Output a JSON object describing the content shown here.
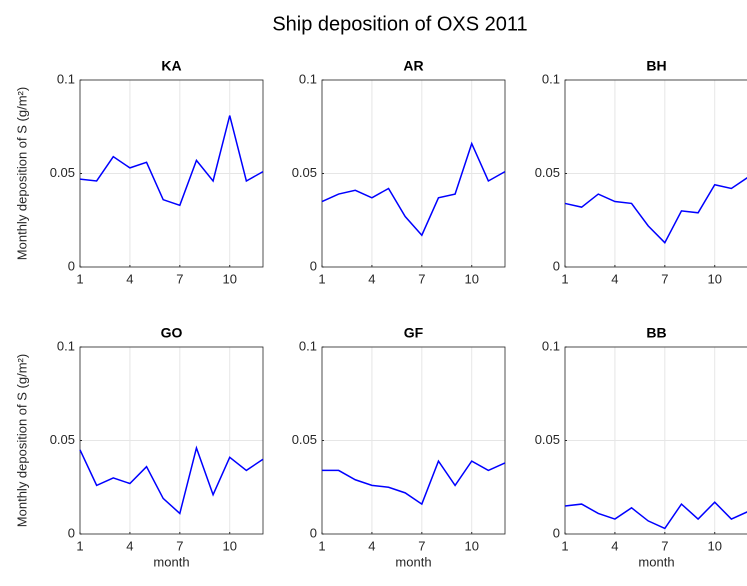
{
  "title": "Ship deposition of OXS 2011",
  "chart_data": [
    {
      "type": "line",
      "title": "KA",
      "ylabel": "Monthly deposition of S (g/m²)",
      "color": "#0000ff",
      "grid": true,
      "x": [
        1,
        2,
        3,
        4,
        5,
        6,
        7,
        8,
        9,
        10,
        11,
        12
      ],
      "values": [
        0.047,
        0.046,
        0.059,
        0.053,
        0.056,
        0.036,
        0.033,
        0.057,
        0.046,
        0.081,
        0.046,
        0.051
      ],
      "xlim": [
        1,
        12
      ],
      "xticks": [
        1,
        4,
        7,
        10
      ],
      "ylim": [
        0,
        0.1
      ],
      "yticks": [
        0,
        0.05,
        0.1
      ]
    },
    {
      "type": "line",
      "title": "AR",
      "color": "#0000ff",
      "grid": true,
      "x": [
        1,
        2,
        3,
        4,
        5,
        6,
        7,
        8,
        9,
        10,
        11,
        12
      ],
      "values": [
        0.035,
        0.039,
        0.041,
        0.037,
        0.042,
        0.027,
        0.017,
        0.037,
        0.039,
        0.066,
        0.046,
        0.051
      ],
      "xlim": [
        1,
        12
      ],
      "xticks": [
        1,
        4,
        7,
        10
      ],
      "ylim": [
        0,
        0.1
      ],
      "yticks": [
        0,
        0.05,
        0.1
      ]
    },
    {
      "type": "line",
      "title": "BH",
      "color": "#0000ff",
      "grid": true,
      "x": [
        1,
        2,
        3,
        4,
        5,
        6,
        7,
        8,
        9,
        10,
        11,
        12
      ],
      "values": [
        0.034,
        0.032,
        0.039,
        0.035,
        0.034,
        0.022,
        0.013,
        0.03,
        0.029,
        0.044,
        0.042,
        0.048
      ],
      "xlim": [
        1,
        12
      ],
      "xticks": [
        1,
        4,
        7,
        10
      ],
      "ylim": [
        0,
        0.1
      ],
      "yticks": [
        0,
        0.05,
        0.1
      ]
    },
    {
      "type": "line",
      "title": "GO",
      "ylabel": "Monthly deposition of S (g/m²)",
      "xlabel": "month",
      "color": "#0000ff",
      "grid": true,
      "x": [
        1,
        2,
        3,
        4,
        5,
        6,
        7,
        8,
        9,
        10,
        11,
        12
      ],
      "values": [
        0.045,
        0.026,
        0.03,
        0.027,
        0.036,
        0.019,
        0.011,
        0.046,
        0.021,
        0.041,
        0.034,
        0.04
      ],
      "xlim": [
        1,
        12
      ],
      "xticks": [
        1,
        4,
        7,
        10
      ],
      "ylim": [
        0,
        0.1
      ],
      "yticks": [
        0,
        0.05,
        0.1
      ]
    },
    {
      "type": "line",
      "title": "GF",
      "xlabel": "month",
      "color": "#0000ff",
      "grid": true,
      "x": [
        1,
        2,
        3,
        4,
        5,
        6,
        7,
        8,
        9,
        10,
        11,
        12
      ],
      "values": [
        0.034,
        0.034,
        0.029,
        0.026,
        0.025,
        0.022,
        0.016,
        0.039,
        0.026,
        0.039,
        0.034,
        0.038
      ],
      "xlim": [
        1,
        12
      ],
      "xticks": [
        1,
        4,
        7,
        10
      ],
      "ylim": [
        0,
        0.1
      ],
      "yticks": [
        0,
        0.05,
        0.1
      ]
    },
    {
      "type": "line",
      "title": "BB",
      "xlabel": "month",
      "color": "#0000ff",
      "grid": true,
      "x": [
        1,
        2,
        3,
        4,
        5,
        6,
        7,
        8,
        9,
        10,
        11,
        12
      ],
      "values": [
        0.015,
        0.016,
        0.011,
        0.008,
        0.014,
        0.007,
        0.003,
        0.016,
        0.008,
        0.017,
        0.008,
        0.012
      ],
      "xlim": [
        1,
        12
      ],
      "xticks": [
        1,
        4,
        7,
        10
      ],
      "ylim": [
        0,
        0.1
      ],
      "yticks": [
        0,
        0.05,
        0.1
      ]
    }
  ]
}
